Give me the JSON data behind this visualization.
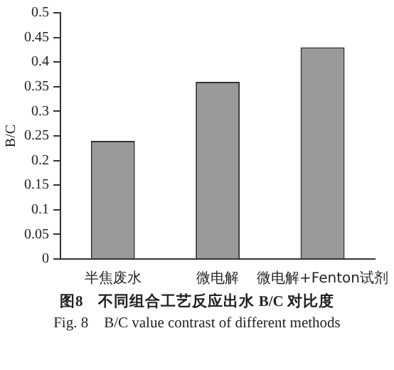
{
  "chart_data": {
    "type": "bar",
    "ylabel": "B/C",
    "categories": [
      "半焦废水",
      "微电解",
      "微电解+Fenton试剂"
    ],
    "values": [
      0.24,
      0.36,
      0.43
    ],
    "color": "#9a9a9a",
    "ylim": [
      0,
      0.5
    ],
    "yticks": [
      0,
      0.05,
      0.1,
      0.15,
      0.2,
      0.25,
      0.3,
      0.35,
      0.4,
      0.45,
      0.5
    ],
    "grid": false,
    "legend": false,
    "annotations": [
      "图8　不同组合工艺反应出水 B/C 对比度",
      "Fig. 8　B/C value contrast of different methods"
    ]
  }
}
